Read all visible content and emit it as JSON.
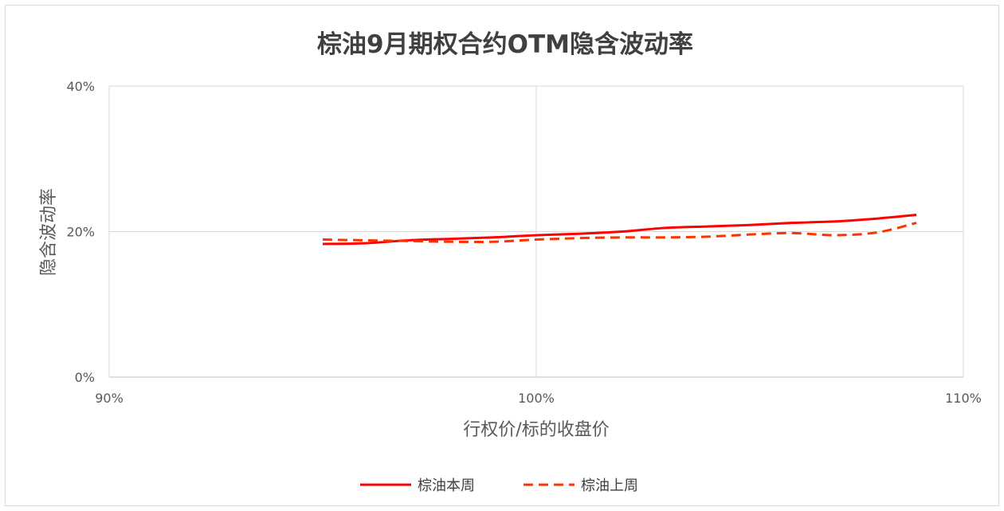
{
  "chart_data": {
    "type": "line",
    "title": "棕油9月期权合约OTM隐含波动率",
    "xlabel": "行权价/标的收盘价",
    "ylabel": "隐含波动率",
    "xlim": [
      90,
      110
    ],
    "ylim": [
      0,
      40
    ],
    "x_ticks": [
      "90%",
      "100%",
      "110%"
    ],
    "y_ticks": [
      "0%",
      "20%",
      "40%"
    ],
    "grid": true,
    "legend_position": "bottom",
    "series": [
      {
        "name": "棕油本周",
        "style": "solid",
        "color": "#ff0000",
        "points": [
          [
            95.0,
            18.3
          ],
          [
            96.0,
            18.4
          ],
          [
            97.0,
            18.8
          ],
          [
            98.0,
            19.0
          ],
          [
            99.0,
            19.2
          ],
          [
            100.0,
            19.5
          ],
          [
            101.0,
            19.7
          ],
          [
            102.0,
            20.0
          ],
          [
            103.0,
            20.5
          ],
          [
            104.0,
            20.7
          ],
          [
            105.0,
            20.9
          ],
          [
            106.0,
            21.2
          ],
          [
            107.0,
            21.4
          ],
          [
            108.0,
            21.8
          ],
          [
            108.9,
            22.3
          ]
        ]
      },
      {
        "name": "棕油上周",
        "style": "dashed",
        "color": "#ff3300",
        "points": [
          [
            95.0,
            18.9
          ],
          [
            96.0,
            18.8
          ],
          [
            97.0,
            18.7
          ],
          [
            98.0,
            18.6
          ],
          [
            99.0,
            18.6
          ],
          [
            100.0,
            18.9
          ],
          [
            101.0,
            19.1
          ],
          [
            102.0,
            19.2
          ],
          [
            103.0,
            19.2
          ],
          [
            104.0,
            19.3
          ],
          [
            105.0,
            19.6
          ],
          [
            106.0,
            19.8
          ],
          [
            107.0,
            19.5
          ],
          [
            108.0,
            19.9
          ],
          [
            108.9,
            21.2
          ]
        ]
      }
    ]
  }
}
